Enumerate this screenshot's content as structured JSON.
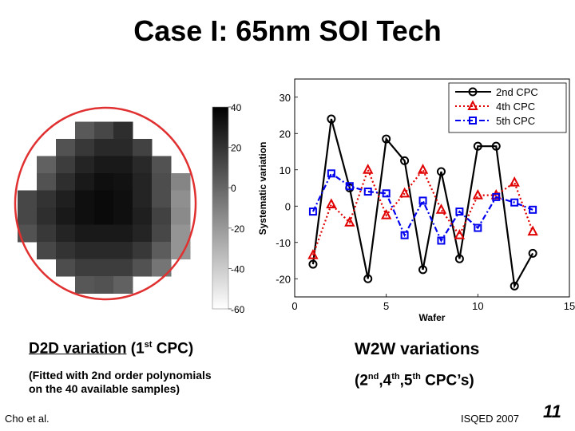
{
  "slide": {
    "title": "Case I: 65nm SOI Tech",
    "d2d_caption": {
      "underlined": "D2D variation",
      "pre": " (1",
      "sup": "st",
      "post": " CPC)"
    },
    "d2d_sub_line1": "(Fitted with 2nd order polynomials",
    "d2d_sub_line2": "on the 40 available samples)",
    "w2w_caption": "W2W variations",
    "w2w_sub": {
      "open": "(2",
      "sup1": "nd",
      "mid1": ",4",
      "sup2": "th",
      "mid2": ",5",
      "sup3": "th",
      "close": " CPC’s)"
    },
    "author": "Cho et al.",
    "venue": "ISQED 2007",
    "page_number": "11"
  },
  "chart_data": [
    {
      "type": "heatmap",
      "title": "",
      "colorbar_range": [
        -60,
        40
      ],
      "colorbar_ticks": [
        "40",
        "20",
        "0",
        "-20",
        "-40",
        "-60"
      ],
      "colormap": [
        "#ffffff",
        "#000000"
      ],
      "wafer_outline_color": "#e03030",
      "rows": [
        [
          null,
          null,
          null,
          null,
          null,
          null,
          null,
          null,
          null,
          null
        ],
        [
          null,
          null,
          null,
          5,
          12,
          22,
          null,
          null,
          null,
          null
        ],
        [
          null,
          null,
          8,
          18,
          24,
          24,
          14,
          null,
          null,
          null
        ],
        [
          null,
          2,
          16,
          26,
          30,
          30,
          24,
          8,
          null,
          null
        ],
        [
          null,
          8,
          22,
          30,
          34,
          33,
          26,
          10,
          -12,
          null
        ],
        [
          12,
          20,
          28,
          34,
          36,
          34,
          26,
          10,
          -16,
          null
        ],
        [
          12,
          22,
          30,
          34,
          36,
          34,
          28,
          14,
          -14,
          null
        ],
        [
          8,
          18,
          26,
          30,
          30,
          30,
          26,
          12,
          -18,
          null
        ],
        [
          null,
          12,
          20,
          24,
          24,
          24,
          18,
          4,
          -18,
          null
        ],
        [
          null,
          null,
          10,
          16,
          16,
          16,
          8,
          -6,
          null,
          null
        ],
        [
          null,
          null,
          null,
          6,
          8,
          2,
          null,
          null,
          null,
          null
        ],
        [
          null,
          null,
          null,
          null,
          null,
          null,
          null,
          null,
          null,
          null
        ]
      ]
    },
    {
      "type": "line",
      "title": "",
      "xlabel": "Wafer",
      "ylabel": "Systematic variation",
      "xlim": [
        0,
        15
      ],
      "ylim": [
        -25,
        35
      ],
      "xticks": [
        0,
        5,
        10,
        15
      ],
      "yticks": [
        -20,
        -10,
        0,
        10,
        20,
        30
      ],
      "legend_position": "top-right",
      "x": [
        1,
        2,
        3,
        4,
        5,
        6,
        7,
        8,
        9,
        10,
        11,
        12,
        13
      ],
      "series": [
        {
          "name": "2nd CPC",
          "color": "#000000",
          "marker": "circle",
          "dash": "solid",
          "values": [
            -16,
            24,
            5,
            -20,
            18.5,
            12.5,
            -17.5,
            9.5,
            -14.5,
            16.5,
            16.5,
            -22,
            -13
          ]
        },
        {
          "name": "4th CPC",
          "color": "#e00000",
          "marker": "triangle",
          "dash": "dotted",
          "values": [
            -13.5,
            0.5,
            -4.5,
            10,
            -2.5,
            3.5,
            10,
            -1,
            -8,
            3,
            3,
            6.5,
            -7
          ]
        },
        {
          "name": "5th CPC",
          "color": "#0000ee",
          "marker": "square",
          "dash": "dashdot",
          "values": [
            -1.5,
            9,
            5.5,
            4,
            3.5,
            -8,
            1.5,
            -9.5,
            -1.5,
            -6,
            2.5,
            1,
            -1
          ]
        }
      ]
    }
  ]
}
